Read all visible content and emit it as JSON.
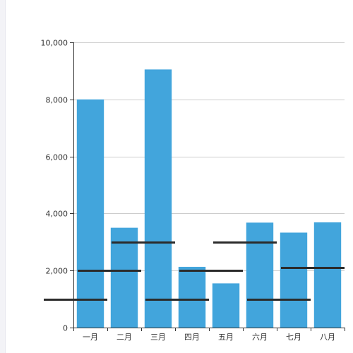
{
  "chart_data": {
    "type": "bar",
    "categories": [
      "一月",
      "二月",
      "三月",
      "四月",
      "五月",
      "六月",
      "七月",
      "八月"
    ],
    "values": [
      8000,
      3500,
      9050,
      2130,
      1550,
      3680,
      3330,
      3690
    ],
    "overlay_series": {
      "type": "segment",
      "values": [
        1000,
        2000,
        3000,
        1000,
        2000,
        3000,
        1000,
        2100
      ]
    },
    "ylim": [
      0,
      10000
    ],
    "yticks": [
      "0",
      "2,000",
      "4,000",
      "6,000",
      "8,000",
      "10,000"
    ],
    "grid": true,
    "legend": "none"
  },
  "colors": {
    "bar": "#42a5dc",
    "overlay": "#2b2b2b",
    "axis": "#333333",
    "grid": "#cccccc",
    "left_rail": "#f3f3f7"
  }
}
